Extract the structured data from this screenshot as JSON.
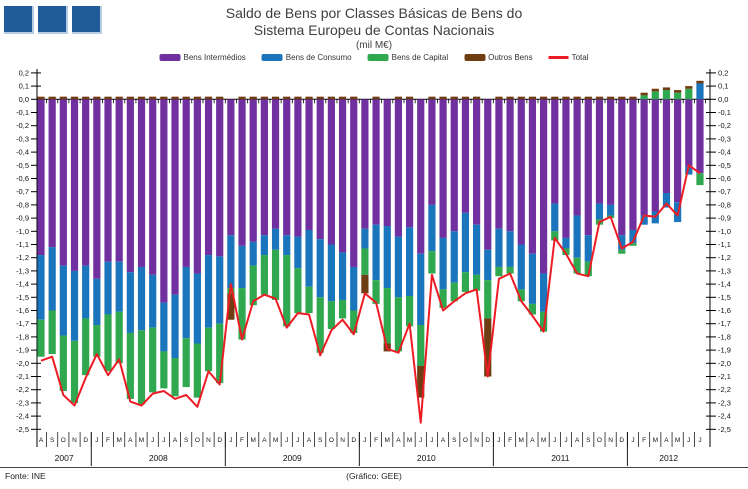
{
  "header": {
    "title_line1": "Saldo de Bens por Classes Básicas de Bens do",
    "title_line2": "Sistema Europeu de Contas Nacionais",
    "subtitle": "(mil M€)"
  },
  "footer": {
    "source": "Fonte: INE",
    "credit": "(Gráfico: GEE)"
  },
  "logo": {
    "square_color": "#1F5C99",
    "square_edge_color": "#B8CCE4",
    "squares": 3
  },
  "legend": {
    "items": [
      {
        "label": "Bens Intermédios",
        "color": "#7030A0",
        "marker": "box"
      },
      {
        "label": "Bens de Consumo",
        "color": "#1B75BC",
        "marker": "box"
      },
      {
        "label": "Bens de Capital",
        "color": "#2FA84F",
        "marker": "box"
      },
      {
        "label": "Outros Bens",
        "color": "#6E3D12",
        "marker": "box"
      },
      {
        "label": "Total",
        "color": "#ED1C24",
        "marker": "line"
      }
    ]
  },
  "chart_data": {
    "type": "bar",
    "subtype": "stacked-bars-with-total-line",
    "title": "Saldo de Bens por Classes Básicas de Bens do Sistema Europeu de Contas Nacionais",
    "unit": "mil M€",
    "ylim": [
      -2.5,
      0.2
    ],
    "ytick_step": 0.1,
    "decimal_separator": ",",
    "grid": false,
    "legend_position": "top",
    "years": [
      {
        "label": "2007",
        "count": 5
      },
      {
        "label": "2008",
        "count": 12
      },
      {
        "label": "2009",
        "count": 12
      },
      {
        "label": "2010",
        "count": 12
      },
      {
        "label": "2011",
        "count": 12
      },
      {
        "label": "2012",
        "count": 7
      }
    ],
    "month_letters": [
      "A",
      "S",
      "O",
      "N",
      "D",
      "J",
      "F",
      "M",
      "A",
      "M",
      "J",
      "J",
      "A",
      "S",
      "O",
      "N",
      "D",
      "J",
      "F",
      "M",
      "A",
      "M",
      "J",
      "J",
      "A",
      "S",
      "O",
      "N",
      "D",
      "J",
      "F",
      "M",
      "A",
      "M",
      "J",
      "J",
      "A",
      "S",
      "O",
      "N",
      "D",
      "J",
      "F",
      "M",
      "A",
      "M",
      "J",
      "J",
      "A",
      "S",
      "O",
      "N",
      "D",
      "J",
      "F",
      "M",
      "A",
      "M",
      "J",
      "J"
    ],
    "series": [
      {
        "name": "Bens Intermédios",
        "kind": "bar",
        "color": "#7030A0",
        "values": [
          -1.18,
          -1.12,
          -1.26,
          -1.3,
          -1.26,
          -1.36,
          -1.23,
          -1.23,
          -1.31,
          -1.27,
          -1.33,
          -1.54,
          -1.48,
          -1.27,
          -1.32,
          -1.18,
          -1.19,
          -1.03,
          -1.11,
          -1.08,
          -1.03,
          -0.98,
          -1.03,
          -1.04,
          -0.99,
          -1.06,
          -1.1,
          -1.16,
          -1.27,
          -0.98,
          -0.95,
          -0.96,
          -1.04,
          -0.97,
          -1.17,
          -0.8,
          -1.05,
          -1.0,
          -0.86,
          -0.95,
          -1.14,
          -0.98,
          -1.0,
          -1.1,
          -1.17,
          -1.32,
          -0.79,
          -1.05,
          -0.88,
          -1.03,
          -0.79,
          -0.8,
          -1.03,
          -0.99,
          -0.88,
          -0.85,
          -0.71,
          -0.78,
          -0.51,
          -0.56
        ]
      },
      {
        "name": "Bens de Consumo",
        "kind": "bar",
        "color": "#1B75BC",
        "values": [
          -0.49,
          -0.48,
          -0.53,
          -0.53,
          -0.4,
          -0.35,
          -0.4,
          -0.38,
          -0.46,
          -0.48,
          -0.4,
          -0.37,
          -0.48,
          -0.54,
          -0.53,
          -0.55,
          -0.51,
          -0.4,
          -0.32,
          -0.18,
          -0.15,
          -0.16,
          -0.15,
          -0.24,
          -0.43,
          -0.44,
          -0.43,
          -0.36,
          -0.33,
          -0.15,
          -0.42,
          -0.47,
          -0.46,
          -0.52,
          -0.54,
          -0.35,
          -0.39,
          -0.39,
          -0.45,
          -0.38,
          -0.23,
          -0.29,
          -0.27,
          -0.34,
          -0.38,
          -0.29,
          -0.21,
          -0.08,
          -0.32,
          -0.2,
          -0.12,
          -0.08,
          -0.11,
          -0.1,
          -0.07,
          -0.09,
          -0.11,
          -0.15,
          -0.06,
          0.12
        ]
      },
      {
        "name": "Bens de Capital",
        "kind": "bar",
        "color": "#2FA84F",
        "values": [
          -0.28,
          -0.33,
          -0.42,
          -0.47,
          -0.43,
          -0.24,
          -0.43,
          -0.39,
          -0.5,
          -0.56,
          -0.49,
          -0.28,
          -0.29,
          -0.37,
          -0.41,
          -0.33,
          -0.45,
          -0.04,
          -0.39,
          -0.3,
          -0.3,
          -0.38,
          -0.54,
          -0.34,
          -0.2,
          -0.42,
          -0.21,
          -0.14,
          -0.17,
          -0.2,
          -0.18,
          -0.42,
          -0.41,
          -0.23,
          -0.31,
          -0.17,
          -0.14,
          -0.14,
          -0.15,
          -0.12,
          -0.29,
          -0.07,
          -0.05,
          -0.09,
          -0.08,
          -0.15,
          -0.07,
          -0.05,
          -0.12,
          -0.11,
          -0.04,
          -0.02,
          -0.03,
          -0.02,
          0.03,
          0.06,
          0.07,
          0.05,
          0.08,
          -0.09
        ]
      },
      {
        "name": "Outros Bens",
        "kind": "bar",
        "color": "#6E3D12",
        "values": [
          0.02,
          0.02,
          0.02,
          0.02,
          0.02,
          0.02,
          0.02,
          0.02,
          0.02,
          0.02,
          0.02,
          0.02,
          0.02,
          0.02,
          0.02,
          0.02,
          0.02,
          -0.2,
          0.02,
          0.02,
          0.02,
          0.02,
          0.02,
          0.02,
          0.02,
          0.02,
          0.02,
          0.02,
          0.02,
          -0.14,
          0.02,
          -0.06,
          0.02,
          0.02,
          -0.24,
          0.02,
          0.02,
          0.02,
          0.02,
          0.02,
          -0.44,
          0.02,
          0.02,
          0.02,
          0.02,
          0.02,
          0.02,
          0.02,
          0.02,
          0.02,
          0.02,
          0.02,
          0.02,
          0.02,
          0.02,
          0.02,
          0.02,
          0.02,
          0.02,
          0.02
        ]
      },
      {
        "name": "Total",
        "kind": "line",
        "color": "#ED1C24",
        "values": [
          -1.98,
          -1.95,
          -2.24,
          -2.32,
          -2.11,
          -1.93,
          -2.09,
          -1.97,
          -2.29,
          -2.32,
          -2.23,
          -2.21,
          -2.27,
          -2.24,
          -2.33,
          -2.06,
          -2.16,
          -1.4,
          -1.82,
          -1.53,
          -1.48,
          -1.51,
          -1.73,
          -1.62,
          -1.63,
          -1.94,
          -1.75,
          -1.67,
          -1.78,
          -1.47,
          -1.54,
          -1.89,
          -1.92,
          -1.7,
          -2.45,
          -1.33,
          -1.6,
          -1.53,
          -1.47,
          -1.44,
          -2.1,
          -1.36,
          -1.32,
          -1.53,
          -1.64,
          -1.76,
          -1.05,
          -1.17,
          -1.32,
          -1.34,
          -0.93,
          -0.89,
          -1.13,
          -1.08,
          -0.88,
          -0.89,
          -0.79,
          -0.88,
          -0.5,
          -0.56
        ]
      }
    ]
  }
}
